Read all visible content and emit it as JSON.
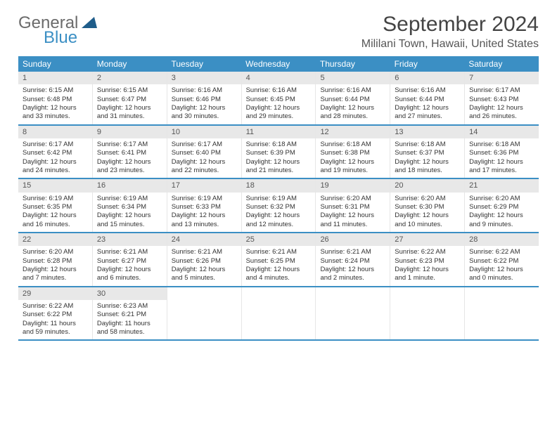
{
  "logo": {
    "general": "General",
    "blue": "Blue"
  },
  "title": "September 2024",
  "location": "Mililani Town, Hawaii, United States",
  "colors": {
    "header_bg": "#3b8fc4",
    "header_text": "#ffffff",
    "daynum_bg": "#e8e8e8",
    "border": "#3b8fc4"
  },
  "day_headers": [
    "Sunday",
    "Monday",
    "Tuesday",
    "Wednesday",
    "Thursday",
    "Friday",
    "Saturday"
  ],
  "weeks": [
    [
      {
        "n": "1",
        "sr": "Sunrise: 6:15 AM",
        "ss": "Sunset: 6:48 PM",
        "dl": "Daylight: 12 hours and 33 minutes."
      },
      {
        "n": "2",
        "sr": "Sunrise: 6:15 AM",
        "ss": "Sunset: 6:47 PM",
        "dl": "Daylight: 12 hours and 31 minutes."
      },
      {
        "n": "3",
        "sr": "Sunrise: 6:16 AM",
        "ss": "Sunset: 6:46 PM",
        "dl": "Daylight: 12 hours and 30 minutes."
      },
      {
        "n": "4",
        "sr": "Sunrise: 6:16 AM",
        "ss": "Sunset: 6:45 PM",
        "dl": "Daylight: 12 hours and 29 minutes."
      },
      {
        "n": "5",
        "sr": "Sunrise: 6:16 AM",
        "ss": "Sunset: 6:44 PM",
        "dl": "Daylight: 12 hours and 28 minutes."
      },
      {
        "n": "6",
        "sr": "Sunrise: 6:16 AM",
        "ss": "Sunset: 6:44 PM",
        "dl": "Daylight: 12 hours and 27 minutes."
      },
      {
        "n": "7",
        "sr": "Sunrise: 6:17 AM",
        "ss": "Sunset: 6:43 PM",
        "dl": "Daylight: 12 hours and 26 minutes."
      }
    ],
    [
      {
        "n": "8",
        "sr": "Sunrise: 6:17 AM",
        "ss": "Sunset: 6:42 PM",
        "dl": "Daylight: 12 hours and 24 minutes."
      },
      {
        "n": "9",
        "sr": "Sunrise: 6:17 AM",
        "ss": "Sunset: 6:41 PM",
        "dl": "Daylight: 12 hours and 23 minutes."
      },
      {
        "n": "10",
        "sr": "Sunrise: 6:17 AM",
        "ss": "Sunset: 6:40 PM",
        "dl": "Daylight: 12 hours and 22 minutes."
      },
      {
        "n": "11",
        "sr": "Sunrise: 6:18 AM",
        "ss": "Sunset: 6:39 PM",
        "dl": "Daylight: 12 hours and 21 minutes."
      },
      {
        "n": "12",
        "sr": "Sunrise: 6:18 AM",
        "ss": "Sunset: 6:38 PM",
        "dl": "Daylight: 12 hours and 19 minutes."
      },
      {
        "n": "13",
        "sr": "Sunrise: 6:18 AM",
        "ss": "Sunset: 6:37 PM",
        "dl": "Daylight: 12 hours and 18 minutes."
      },
      {
        "n": "14",
        "sr": "Sunrise: 6:18 AM",
        "ss": "Sunset: 6:36 PM",
        "dl": "Daylight: 12 hours and 17 minutes."
      }
    ],
    [
      {
        "n": "15",
        "sr": "Sunrise: 6:19 AM",
        "ss": "Sunset: 6:35 PM",
        "dl": "Daylight: 12 hours and 16 minutes."
      },
      {
        "n": "16",
        "sr": "Sunrise: 6:19 AM",
        "ss": "Sunset: 6:34 PM",
        "dl": "Daylight: 12 hours and 15 minutes."
      },
      {
        "n": "17",
        "sr": "Sunrise: 6:19 AM",
        "ss": "Sunset: 6:33 PM",
        "dl": "Daylight: 12 hours and 13 minutes."
      },
      {
        "n": "18",
        "sr": "Sunrise: 6:19 AM",
        "ss": "Sunset: 6:32 PM",
        "dl": "Daylight: 12 hours and 12 minutes."
      },
      {
        "n": "19",
        "sr": "Sunrise: 6:20 AM",
        "ss": "Sunset: 6:31 PM",
        "dl": "Daylight: 12 hours and 11 minutes."
      },
      {
        "n": "20",
        "sr": "Sunrise: 6:20 AM",
        "ss": "Sunset: 6:30 PM",
        "dl": "Daylight: 12 hours and 10 minutes."
      },
      {
        "n": "21",
        "sr": "Sunrise: 6:20 AM",
        "ss": "Sunset: 6:29 PM",
        "dl": "Daylight: 12 hours and 9 minutes."
      }
    ],
    [
      {
        "n": "22",
        "sr": "Sunrise: 6:20 AM",
        "ss": "Sunset: 6:28 PM",
        "dl": "Daylight: 12 hours and 7 minutes."
      },
      {
        "n": "23",
        "sr": "Sunrise: 6:21 AM",
        "ss": "Sunset: 6:27 PM",
        "dl": "Daylight: 12 hours and 6 minutes."
      },
      {
        "n": "24",
        "sr": "Sunrise: 6:21 AM",
        "ss": "Sunset: 6:26 PM",
        "dl": "Daylight: 12 hours and 5 minutes."
      },
      {
        "n": "25",
        "sr": "Sunrise: 6:21 AM",
        "ss": "Sunset: 6:25 PM",
        "dl": "Daylight: 12 hours and 4 minutes."
      },
      {
        "n": "26",
        "sr": "Sunrise: 6:21 AM",
        "ss": "Sunset: 6:24 PM",
        "dl": "Daylight: 12 hours and 2 minutes."
      },
      {
        "n": "27",
        "sr": "Sunrise: 6:22 AM",
        "ss": "Sunset: 6:23 PM",
        "dl": "Daylight: 12 hours and 1 minute."
      },
      {
        "n": "28",
        "sr": "Sunrise: 6:22 AM",
        "ss": "Sunset: 6:22 PM",
        "dl": "Daylight: 12 hours and 0 minutes."
      }
    ],
    [
      {
        "n": "29",
        "sr": "Sunrise: 6:22 AM",
        "ss": "Sunset: 6:22 PM",
        "dl": "Daylight: 11 hours and 59 minutes."
      },
      {
        "n": "30",
        "sr": "Sunrise: 6:23 AM",
        "ss": "Sunset: 6:21 PM",
        "dl": "Daylight: 11 hours and 58 minutes."
      },
      null,
      null,
      null,
      null,
      null
    ]
  ]
}
